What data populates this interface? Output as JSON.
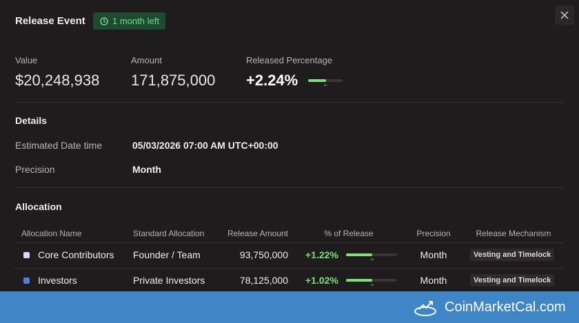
{
  "header": {
    "title": "Release Event",
    "badge": "1 month left"
  },
  "summary": [
    {
      "label": "Value",
      "value": "$20,248,938"
    },
    {
      "label": "Amount",
      "value": "171,875,000"
    },
    {
      "label": "Released Percentage",
      "value": "+2.24%"
    }
  ],
  "details": {
    "title": "Details",
    "rows": [
      [
        "Estimated Date time",
        "05/03/2026 07:00 AM UTC+00:00"
      ],
      [
        "Precision",
        "Month"
      ]
    ]
  },
  "allocation": {
    "title": "Allocation",
    "columns": [
      "Allocation Name",
      "Standard Allocation",
      "Release Amount",
      "% of Release",
      "Precision",
      "Release Mechanism"
    ],
    "rows": [
      [
        "Core Contributors",
        "Founder / Team",
        "93,750,000",
        "+1.22%",
        "Month",
        "Vesting and Timelock"
      ],
      [
        "Investors",
        "Private Investors",
        "78,125,000",
        "+1.02%",
        "Month",
        "Vesting and Timelock"
      ]
    ]
  },
  "footer": {
    "brand": "CoinMarketCal.com"
  }
}
